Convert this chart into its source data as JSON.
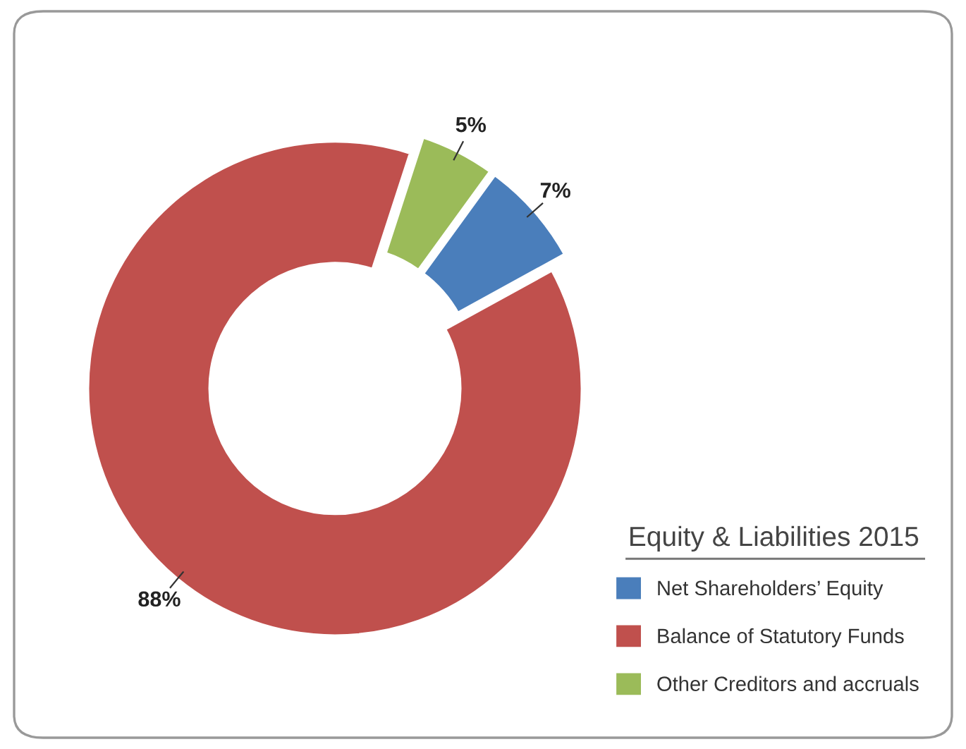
{
  "chart_data": {
    "type": "donut",
    "legend_title": "Equity & Liabilities 2015",
    "legend": "bottom right",
    "categories": [
      "Net Shareholders’ Equity",
      "Balance of Statutory Funds",
      "Other Creditors and accruals"
    ],
    "values": [
      7,
      88,
      5
    ],
    "colors": [
      "#4a7ebb",
      "#c0504d",
      "#9bbb59"
    ],
    "value_labels": [
      "7%",
      "88%",
      "5%"
    ]
  }
}
